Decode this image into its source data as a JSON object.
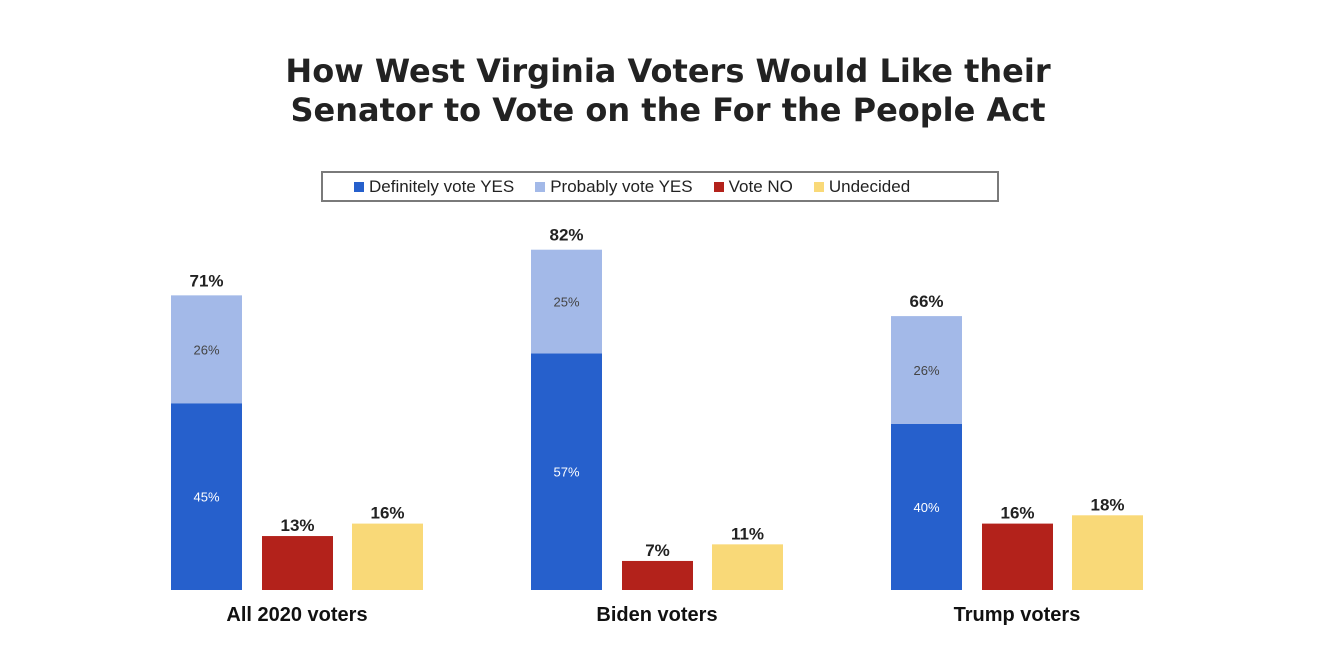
{
  "chart_data": {
    "type": "bar",
    "title_lines": [
      "How West Virginia Voters Would Like their",
      "Senator to Vote on the For the People Act"
    ],
    "ylim": [
      0,
      100
    ],
    "legend_position": "top",
    "grid": false,
    "series": [
      {
        "name": "Definitely vote YES",
        "color": "#2660cc"
      },
      {
        "name": "Probably vote YES",
        "color": "#a3b9e8"
      },
      {
        "name": "Vote NO",
        "color": "#b3221b"
      },
      {
        "name": "Undecided",
        "color": "#f9d978"
      }
    ],
    "categories": [
      {
        "label": "All 2020 voters",
        "yes_total": 71,
        "yes_total_label": "71%",
        "definitely_yes": 45,
        "definitely_yes_label": "45%",
        "probably_yes": 26,
        "probably_yes_label": "26%",
        "vote_no": 13,
        "vote_no_label": "13%",
        "undecided": 16,
        "undecided_label": "16%"
      },
      {
        "label": "Biden voters",
        "yes_total": 82,
        "yes_total_label": "82%",
        "definitely_yes": 57,
        "definitely_yes_label": "57%",
        "probably_yes": 25,
        "probably_yes_label": "25%",
        "vote_no": 7,
        "vote_no_label": "7%",
        "undecided": 11,
        "undecided_label": "11%"
      },
      {
        "label": "Trump voters",
        "yes_total": 66,
        "yes_total_label": "66%",
        "definitely_yes": 40,
        "definitely_yes_label": "40%",
        "probably_yes": 26,
        "probably_yes_label": "26%",
        "vote_no": 16,
        "vote_no_label": "16%",
        "undecided": 18,
        "undecided_label": "18%"
      }
    ]
  }
}
